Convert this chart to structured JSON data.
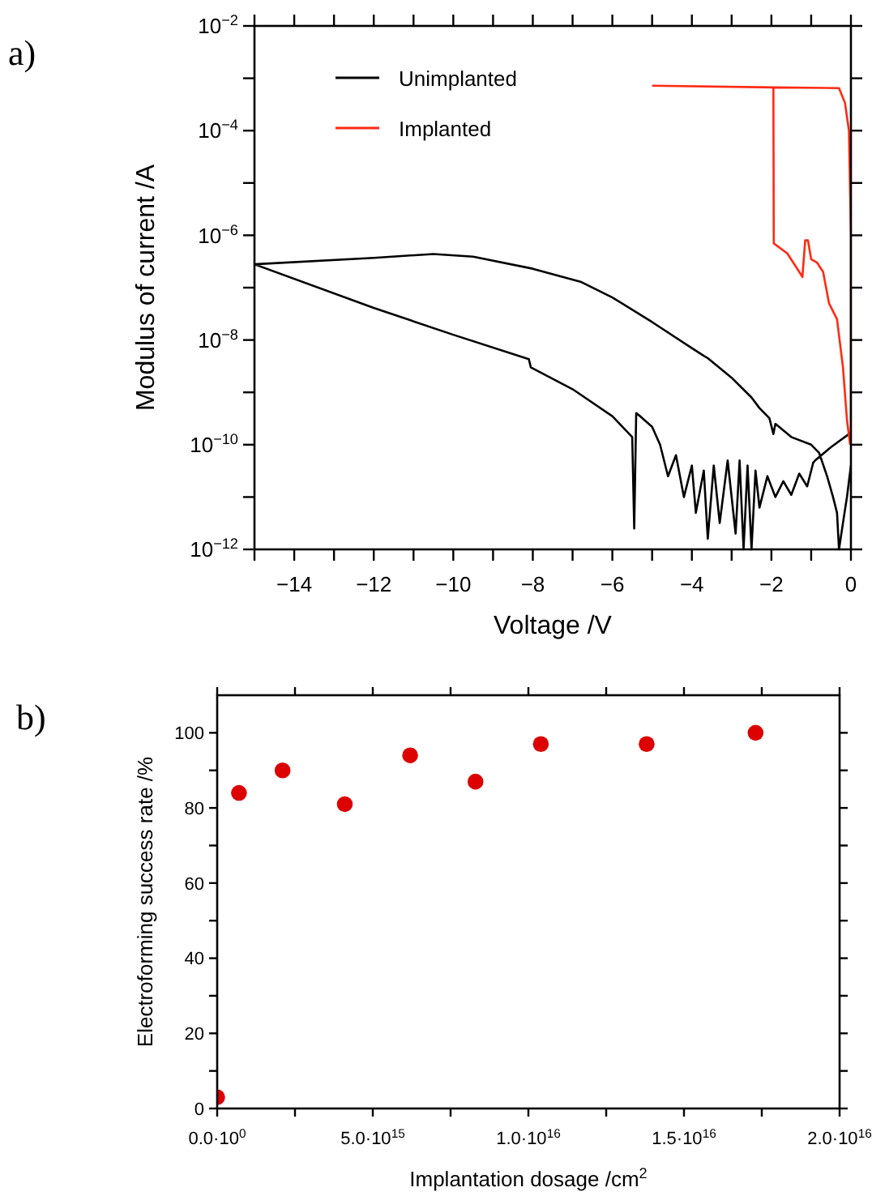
{
  "chart_data": [
    {
      "type": "line",
      "xlabel": "Voltage /V",
      "ylabel": "Modulus of current /A",
      "annotations": [
        "a)"
      ],
      "log": "y",
      "legend": "top left",
      "grid": false,
      "xlim": [
        -15,
        0
      ],
      "xticks": [
        {
          "value": -15,
          "label": null
        },
        -14,
        {
          "value": -13,
          "label": null
        },
        -12,
        {
          "value": -11,
          "label": null
        },
        -10,
        {
          "value": -9,
          "label": null
        },
        -8,
        {
          "value": -7,
          "label": null
        },
        -6,
        {
          "value": -5,
          "label": null
        },
        -4,
        {
          "value": -3,
          "label": null
        },
        -2,
        {
          "value": -1,
          "label": null
        },
        0
      ],
      "ylim": [
        1e-12,
        0.01
      ],
      "yticks": [
        {
          "value": 1e-12,
          "label": "10$^{−12}$"
        },
        {
          "value": 1e-11,
          "label": null
        },
        {
          "value": 1e-10,
          "label": "10$^{−10}$"
        },
        {
          "value": 1e-09,
          "label": null
        },
        {
          "value": 1e-08,
          "label": "10$^{−8}$"
        },
        {
          "value": 1e-07,
          "label": null
        },
        {
          "value": 1e-06,
          "label": "10$^{−6}$"
        },
        {
          "value": 1e-05,
          "label": null
        },
        {
          "value": 0.0001,
          "label": "10$^{−4}$"
        },
        {
          "value": 0.001,
          "label": null
        },
        {
          "value": 0.01,
          "label": "10$^{−2}$"
        }
      ],
      "series": [
        {
          "name": "Unimplanted",
          "color": "#000000",
          "x": [
            0,
            -0.1,
            -0.2,
            -0.3,
            -0.35,
            -0.45,
            -0.6,
            -0.8,
            -1,
            -1.5,
            -1.9,
            -1.95,
            -2.05,
            -2.3,
            -2.5,
            -3,
            -3.6,
            -3.7,
            -4,
            -5,
            -6,
            -6.8,
            -8,
            -9.5,
            -10.5,
            -12,
            -15,
            -12,
            -10,
            -8.1,
            -8.05,
            -7,
            -6,
            -5.5,
            -5.45,
            -5.4,
            -5.3,
            -5,
            -4.8,
            -4.6,
            -4.4,
            -4.2,
            -4,
            -3.9,
            -3.7,
            -3.6,
            -3.45,
            -3.3,
            -3.1,
            -2.9,
            -2.8,
            -2.7,
            -2.6,
            -2.5,
            -2.4,
            -2.3,
            -2.1,
            -1.9,
            -1.7,
            -1.5,
            -1.3,
            -1.1,
            -0.95,
            -0.9,
            -0.5,
            0
          ],
          "values": [
            4e-11,
            1e-11,
            3.2e-12,
            1e-12,
            5e-12,
            1e-11,
            2.5e-11,
            7e-11,
            1e-10,
            1.4e-10,
            2.5e-10,
            1.6e-10,
            3.2e-10,
            5e-10,
            8e-10,
            1.9e-09,
            4.5e-09,
            5e-09,
            7e-09,
            2.2e-08,
            6.5e-08,
            1.3e-07,
            2.3e-07,
            3.9e-07,
            4.4e-07,
            3.7e-07,
            2.8e-07,
            4.1e-08,
            1.26e-08,
            4.3e-09,
            3e-09,
            1.15e-09,
            3.5e-10,
            1.4e-10,
            2.5e-12,
            4e-10,
            3.5e-10,
            2.2e-10,
            1e-10,
            2.5e-11,
            6.3e-11,
            1e-11,
            4e-11,
            5e-12,
            3.2e-11,
            1.6e-12,
            4e-11,
            3.2e-12,
            5e-11,
            2e-12,
            5e-11,
            1e-12,
            4e-11,
            1e-12,
            3.2e-11,
            6.3e-12,
            2.5e-11,
            1e-11,
            2e-11,
            1.1e-11,
            2.8e-11,
            1.6e-11,
            4.5e-11,
            5e-11,
            9e-11,
            1.7e-10
          ]
        },
        {
          "name": "Implanted",
          "color": "#ff2a12",
          "x": [
            -5,
            -1.95,
            -0.3,
            -0.15,
            -0.05,
            0,
            0,
            null,
            -1.95,
            -1.94,
            -1.6,
            -1.3,
            -1.22,
            -1.15,
            -1.08,
            -1,
            -0.85,
            -0.7,
            -0.55,
            -0.35,
            -0.2,
            -0.1,
            -0.02
          ],
          "values": [
            0.00072,
            0.00067,
            0.00065,
            0.00034,
            0.0001,
            1e-06,
            1e-10,
            null,
            0.00066,
            7e-07,
            4.5e-07,
            2e-07,
            1.6e-07,
            8e-07,
            8e-07,
            3.5e-07,
            3e-07,
            2e-07,
            5e-08,
            2.5e-08,
            3e-09,
            3e-10,
            1e-10
          ]
        }
      ]
    },
    {
      "type": "scatter",
      "xlabel": "Implantation dosage /cm$^{2}$",
      "ylabel": "Electroforming success rate /%",
      "annotations": [
        "b)"
      ],
      "grid": false,
      "marker": "circle",
      "xlim": [
        0,
        2e+16
      ],
      "xticks": [
        {
          "value": 0,
          "label": "0.0·10$^{0}$"
        },
        {
          "value": 2500000000000000.0,
          "label": null
        },
        {
          "value": 5000000000000000.0,
          "label": "5.0·10$^{15}$"
        },
        {
          "value": 7500000000000000.0,
          "label": null
        },
        {
          "value": 1e+16,
          "label": "1.0·10$^{16}$"
        },
        {
          "value": 1.25e+16,
          "label": null
        },
        {
          "value": 1.5e+16,
          "label": "1.5·10$^{16}$"
        },
        {
          "value": 1.75e+16,
          "label": null
        },
        {
          "value": 2e+16,
          "label": "2.0·10$^{16}$"
        }
      ],
      "ylim": [
        0,
        110
      ],
      "yticks": [
        0,
        {
          "value": 10,
          "label": null
        },
        20,
        {
          "value": 30,
          "label": null
        },
        40,
        {
          "value": 50,
          "label": null
        },
        60,
        {
          "value": 70,
          "label": null
        },
        80,
        {
          "value": 90,
          "label": null
        },
        100
      ],
      "series": [
        {
          "color": "#dd0000",
          "x": [
            0,
            700000000000000.0,
            2100000000000000.0,
            4100000000000000.0,
            6200000000000000.0,
            8300000000000000.0,
            1.04e+16,
            1.38e+16,
            1.73e+16
          ],
          "values": [
            3,
            84,
            90,
            81,
            94,
            87,
            97,
            97,
            100
          ]
        }
      ]
    }
  ]
}
